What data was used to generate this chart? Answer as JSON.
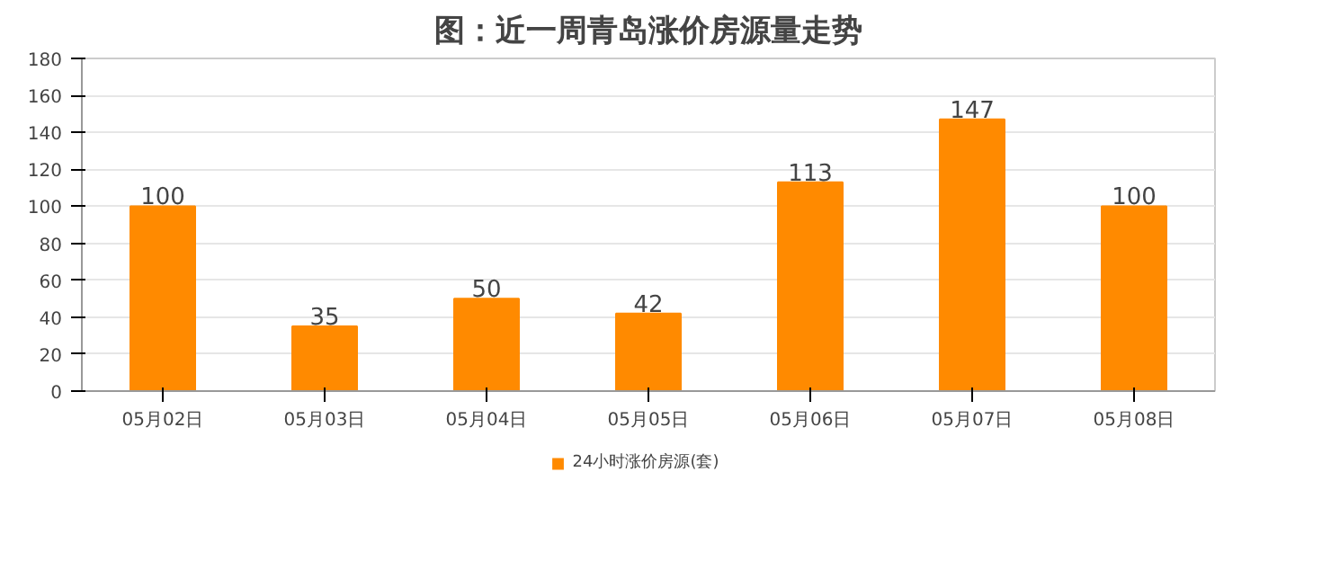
{
  "chart_data": {
    "type": "bar",
    "title": "图：近一周青岛涨价房源量走势",
    "categories": [
      "05月02日",
      "05月03日",
      "05月04日",
      "05月05日",
      "05月06日",
      "05月07日",
      "05月08日"
    ],
    "series": [
      {
        "name": "24小时涨价房源(套)",
        "color": "#ff8a00",
        "values": [
          100,
          35,
          50,
          42,
          113,
          147,
          100
        ]
      }
    ],
    "ylim": [
      0,
      180
    ],
    "yticks": [
      0,
      20,
      40,
      60,
      80,
      100,
      120,
      140,
      160,
      180
    ],
    "grid": "y",
    "legend": "bottom",
    "data_labels": true
  }
}
